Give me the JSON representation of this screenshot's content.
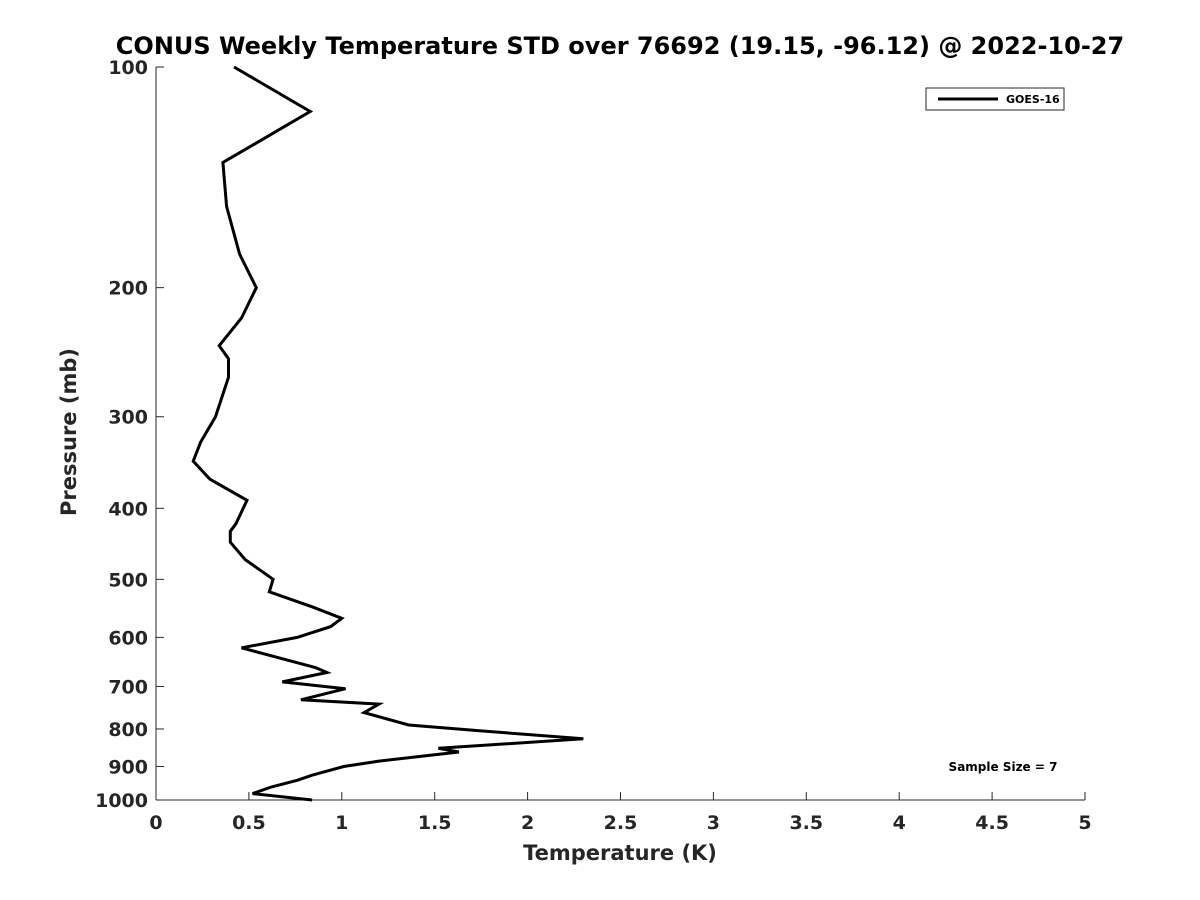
{
  "chart_data": {
    "type": "line",
    "title": "CONUS Weekly Temperature STD over 76692 (19.15, -96.12) @ 2022-10-27",
    "xlabel": "Temperature (K)",
    "ylabel": "Pressure (mb)",
    "xlim": [
      0,
      5
    ],
    "ylim": [
      100,
      1000
    ],
    "y_scale": "log",
    "y_reversed": true,
    "grid": false,
    "legend_position": "top-right",
    "x_ticks": [
      "0",
      "0.5",
      "1",
      "1.5",
      "2",
      "2.5",
      "3",
      "3.5",
      "4",
      "4.5",
      "5"
    ],
    "y_ticks": [
      "100",
      "200",
      "300",
      "400",
      "500",
      "600",
      "700",
      "800",
      "900",
      "1000"
    ],
    "annotation": "Sample Size = 7",
    "series": [
      {
        "name": "GOES-16",
        "color": "#000000",
        "points": [
          [
            0.42,
            100
          ],
          [
            0.83,
            115
          ],
          [
            0.36,
            135
          ],
          [
            0.38,
            155
          ],
          [
            0.45,
            180
          ],
          [
            0.54,
            200
          ],
          [
            0.46,
            220
          ],
          [
            0.34,
            240
          ],
          [
            0.39,
            250
          ],
          [
            0.39,
            265
          ],
          [
            0.32,
            300
          ],
          [
            0.24,
            325
          ],
          [
            0.2,
            345
          ],
          [
            0.29,
            365
          ],
          [
            0.49,
            390
          ],
          [
            0.43,
            420
          ],
          [
            0.4,
            430
          ],
          [
            0.4,
            445
          ],
          [
            0.48,
            470
          ],
          [
            0.63,
            500
          ],
          [
            0.61,
            520
          ],
          [
            0.84,
            545
          ],
          [
            1.0,
            565
          ],
          [
            0.94,
            580
          ],
          [
            0.76,
            600
          ],
          [
            0.46,
            620
          ],
          [
            0.86,
            660
          ],
          [
            0.92,
            670
          ],
          [
            0.68,
            690
          ],
          [
            1.02,
            705
          ],
          [
            0.78,
            730
          ],
          [
            1.2,
            740
          ],
          [
            1.12,
            760
          ],
          [
            1.36,
            790
          ],
          [
            1.75,
            805
          ],
          [
            2.3,
            825
          ],
          [
            1.52,
            850
          ],
          [
            1.63,
            860
          ],
          [
            1.2,
            885
          ],
          [
            1.01,
            900
          ],
          [
            0.84,
            925
          ],
          [
            0.76,
            940
          ],
          [
            0.62,
            960
          ],
          [
            0.52,
            980
          ],
          [
            0.84,
            1000
          ]
        ]
      }
    ]
  }
}
